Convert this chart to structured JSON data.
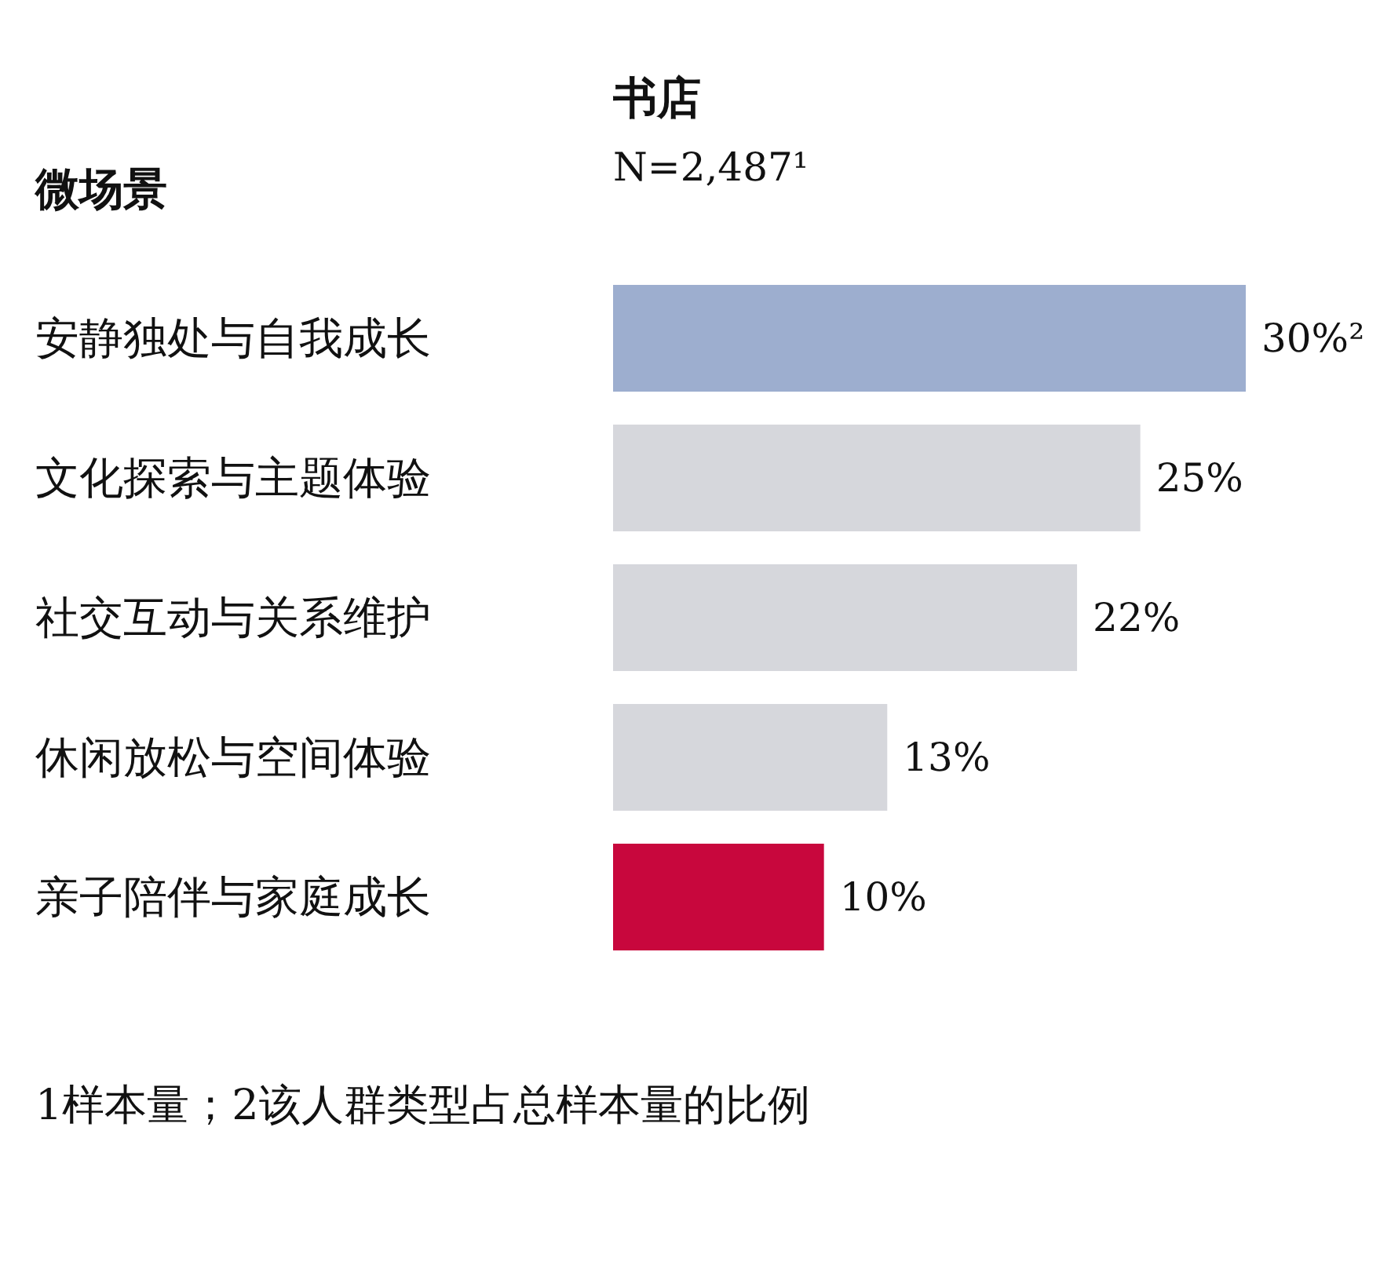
{
  "chart_data": {
    "type": "bar",
    "orientation": "horizontal",
    "title": "书店",
    "subtitle": "N=2,487¹",
    "ylabel": "微场景",
    "categories": [
      "安静独处与自我成长",
      "文化探索与主题体验",
      "社交互动与关系维护",
      "休闲放松与空间体验",
      "亲子陪伴与家庭成长"
    ],
    "values": [
      30,
      25,
      22,
      13,
      10
    ],
    "colors": [
      "#9daecf",
      "#d6d7dc",
      "#d6d7dc",
      "#d6d7dc",
      "#c8073d"
    ],
    "value_labels": [
      "30%²",
      "25%",
      "22%",
      "13%",
      "10%"
    ],
    "annotations": [
      "1样本量；2该人群类型占总样本量的比例"
    ],
    "grid": false
  }
}
